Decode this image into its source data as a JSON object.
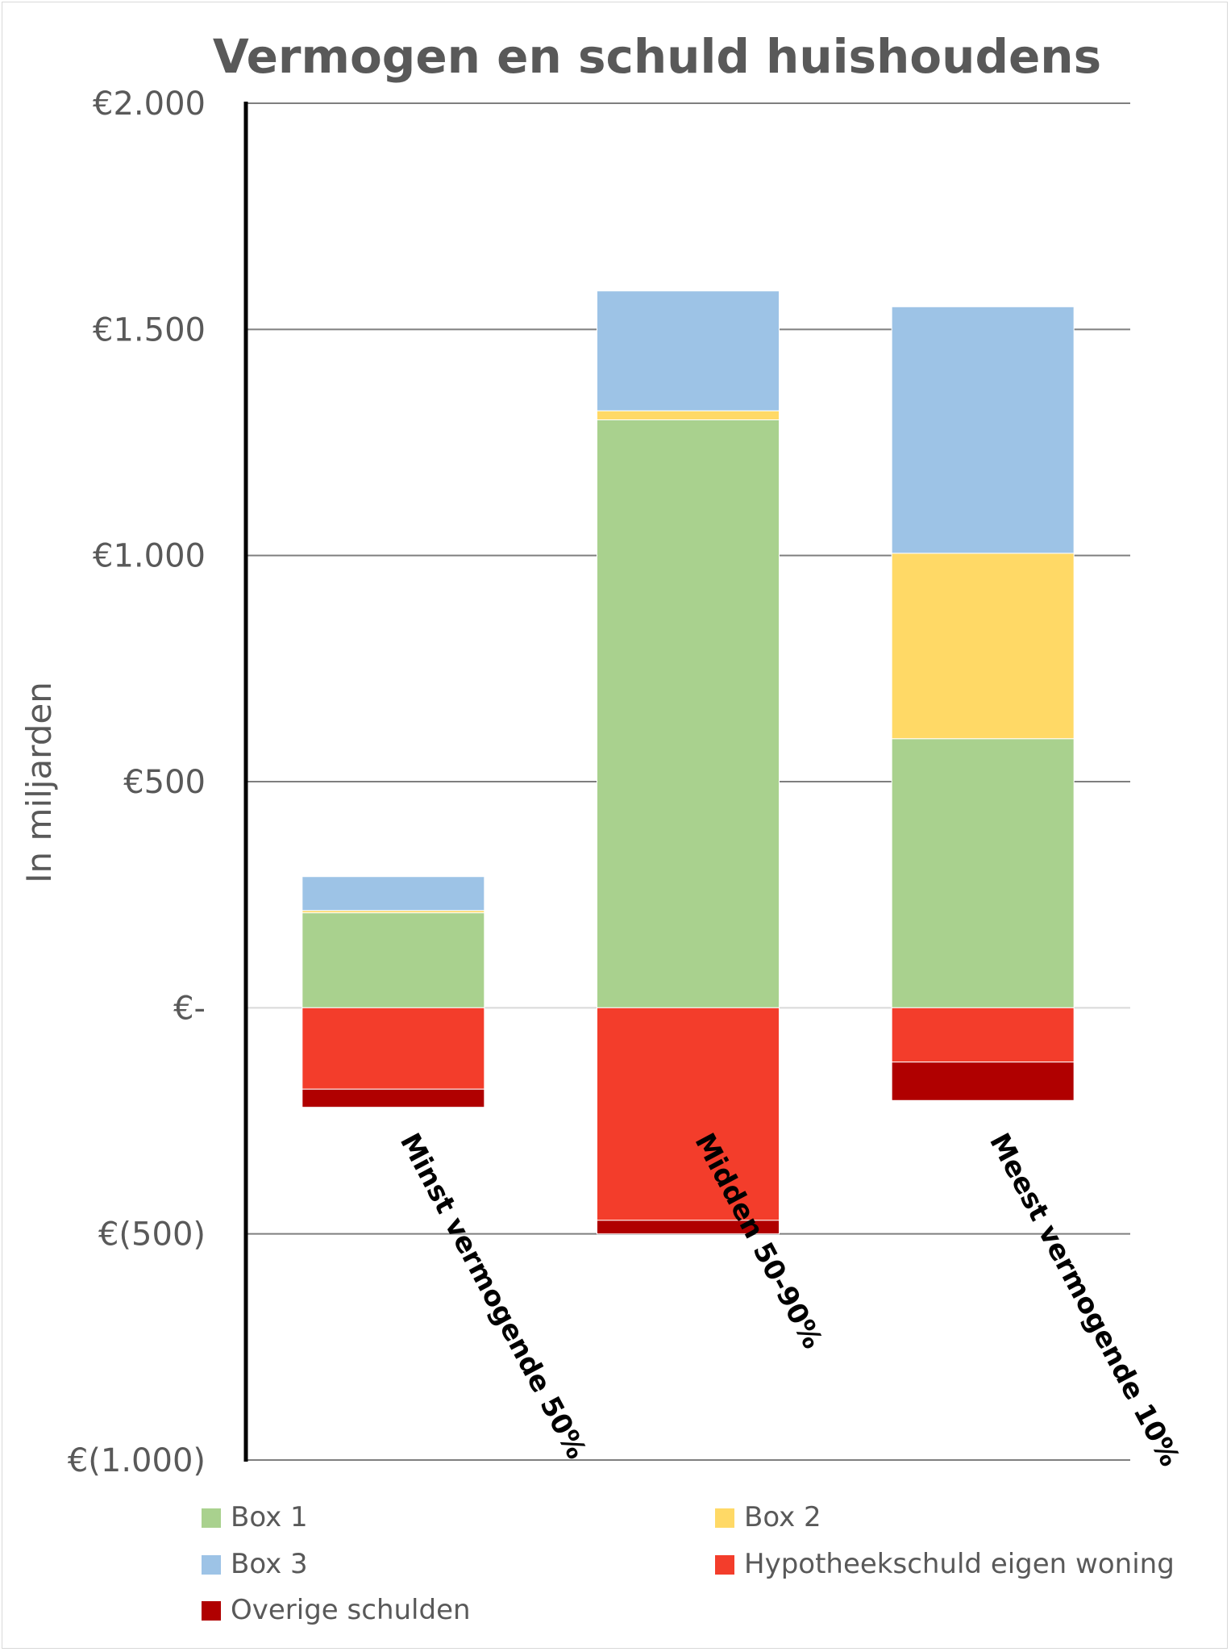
{
  "chart_data": {
    "type": "bar",
    "stacked": true,
    "title": "Vermogen en schuld huishoudens",
    "ylabel": "In miljarden",
    "xlabel": "",
    "ylim": [
      -1000,
      2000
    ],
    "yticks": [
      {
        "value": 2000,
        "label": "€2.000"
      },
      {
        "value": 1500,
        "label": "€1.500"
      },
      {
        "value": 1000,
        "label": "€1.000"
      },
      {
        "value": 500,
        "label": "€500"
      },
      {
        "value": 0,
        "label": "€-"
      },
      {
        "value": -500,
        "label": "€(500)"
      },
      {
        "value": -1000,
        "label": "€(1.000)"
      }
    ],
    "categories": [
      "Minst vermogende 50%",
      "Midden 50-90%",
      "Meest vermogende 10%"
    ],
    "series": [
      {
        "name": "Box 1",
        "color": "#a9d18e",
        "values": [
          210,
          1300,
          595
        ]
      },
      {
        "name": "Box 2",
        "color": "#ffd966",
        "values": [
          5,
          20,
          410
        ]
      },
      {
        "name": "Box 3",
        "color": "#9dc3e6",
        "values": [
          75,
          265,
          545
        ]
      },
      {
        "name": "Hypotheekschuld eigen woning",
        "color": "#f33d2b",
        "values": [
          -180,
          -470,
          -120
        ]
      },
      {
        "name": "Overige schulden",
        "color": "#b00000",
        "values": [
          -40,
          -30,
          -85
        ]
      }
    ],
    "grid": true,
    "legend_position": "bottom"
  }
}
